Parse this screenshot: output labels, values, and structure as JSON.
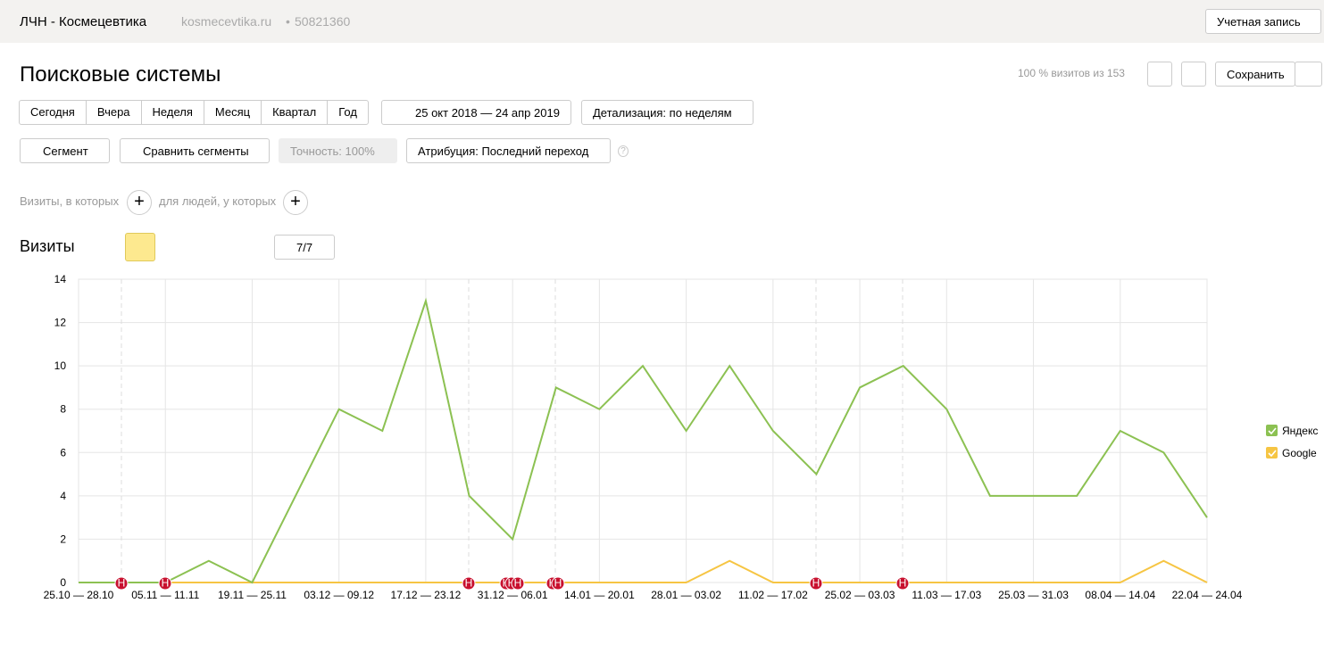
{
  "header": {
    "counter_name": "ЛЧН - Космецевтика",
    "site": "kosmecevtika.ru",
    "separator": "•",
    "counter_id": "50821360",
    "account": "Учетная запись"
  },
  "report": {
    "title": "Поисковые системы",
    "sample": "100 % визитов из 153",
    "save": "Сохранить"
  },
  "periods": [
    "Сегодня",
    "Вчера",
    "Неделя",
    "Месяц",
    "Квартал",
    "Год"
  ],
  "date_range": "25 окт 2018 — 24 апр 2019",
  "detail": "Детализация: по неделям",
  "filters": {
    "segment": "Сегмент",
    "compare": "Сравнить сегменты",
    "accuracy": "Точность: 100%",
    "attribution": "Атрибуция: Последний переход",
    "help": "?"
  },
  "conditions": {
    "visits": "Визиты, в которых",
    "people": "для людей, у которых"
  },
  "chart_header": {
    "title": "Визиты",
    "notes": "7/7"
  },
  "chart_data": {
    "type": "line",
    "event_label": "Н",
    "categories": [
      "25.10 — 28.10",
      null,
      "05.11 — 11.11",
      null,
      "19.11 — 25.11",
      null,
      "03.12 — 09.12",
      null,
      "17.12 — 23.12",
      null,
      "31.12 — 06.01",
      null,
      "14.01 — 20.01",
      null,
      "28.01 — 03.02",
      null,
      "11.02 — 17.02",
      null,
      "25.02 — 03.03",
      null,
      "11.03 — 17.03",
      null,
      "25.03 — 31.03",
      null,
      "08.04 — 14.04",
      null,
      "22.04 — 24.04"
    ],
    "series": [
      {
        "name": "Яндекс",
        "color": "#8cc152",
        "values": [
          0,
          0,
          0,
          1,
          0,
          4,
          8,
          7,
          13,
          4,
          2,
          9,
          8,
          10,
          7,
          10,
          7,
          5,
          9,
          10,
          8,
          4,
          4,
          4,
          7,
          6,
          3
        ]
      },
      {
        "name": "Google",
        "color": "#f6c543",
        "values": [
          0,
          0,
          0,
          0,
          0,
          0,
          0,
          0,
          0,
          0,
          0,
          0,
          0,
          0,
          0,
          1,
          0,
          0,
          0,
          0,
          0,
          0,
          0,
          0,
          0,
          1,
          0
        ]
      }
    ],
    "ylim": [
      0,
      14
    ],
    "yticks": [
      0,
      2,
      4,
      6,
      8,
      10,
      12,
      14
    ],
    "grid": true,
    "legend": "right"
  }
}
